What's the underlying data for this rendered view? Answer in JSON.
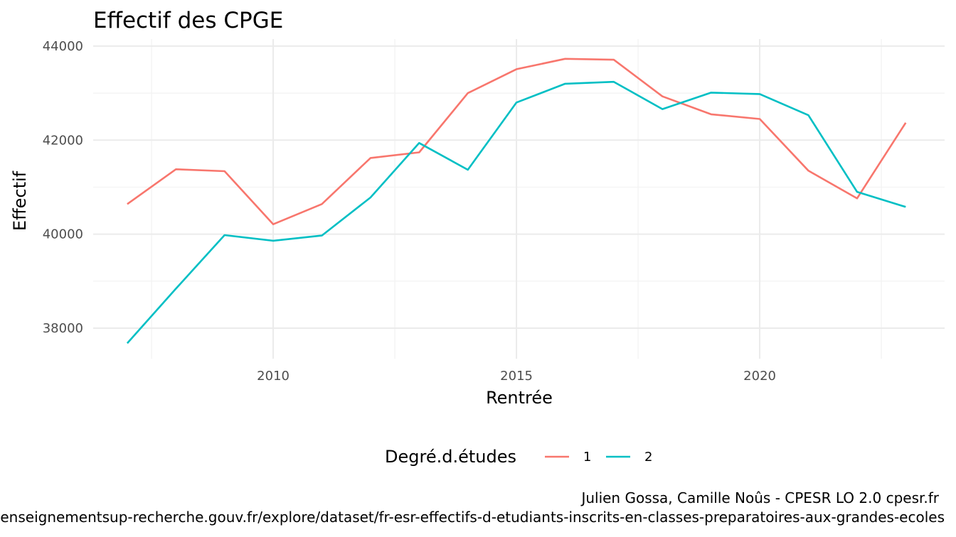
{
  "chart_data": {
    "type": "line",
    "title": "Effectif des CPGE",
    "xlabel": "Rentrée",
    "ylabel": "Effectif",
    "x": [
      2007,
      2008,
      2009,
      2010,
      2011,
      2012,
      2013,
      2014,
      2015,
      2016,
      2017,
      2018,
      2019,
      2020,
      2021,
      2022,
      2023
    ],
    "x_ticks": [
      2010,
      2015,
      2020
    ],
    "y_ticks": [
      38000,
      40000,
      42000,
      44000
    ],
    "xlim": [
      2006.3,
      2023.8
    ],
    "ylim": [
      37350,
      44150
    ],
    "grid": true,
    "legend": {
      "title": "Degré.d.études",
      "position": "bottom"
    },
    "series": [
      {
        "name": "1",
        "color": "#F8766D",
        "values": [
          40640,
          41380,
          41340,
          40210,
          40640,
          41620,
          41740,
          43000,
          43510,
          43730,
          43710,
          42930,
          42550,
          42450,
          41350,
          40760,
          42370
        ]
      },
      {
        "name": "2",
        "color": "#00BFC4",
        "values": [
          37680,
          38840,
          39980,
          39860,
          39970,
          40780,
          41940,
          41370,
          42800,
          43200,
          43240,
          42660,
          43010,
          42980,
          42530,
          40900,
          40580
        ]
      }
    ]
  },
  "caption": {
    "line1": "Julien Gossa, Camille Noûs - CPESR LO 2.0 cpesr.fr",
    "line2": "https://data.enseignementsup-recherche.gouv.fr/explore/dataset/fr-esr-effectifs-d-etudiants-inscrits-en-classes-preparatoires-aux-grandes-ecoles"
  }
}
